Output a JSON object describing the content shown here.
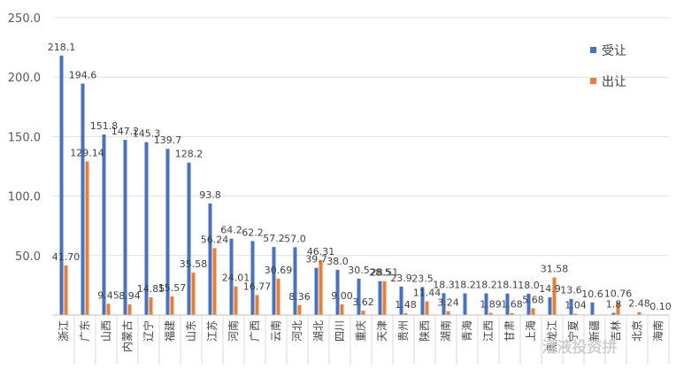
{
  "chart_data": {
    "type": "bar",
    "title": "",
    "xlabel": "",
    "ylabel": "",
    "ylim": [
      0,
      250
    ],
    "yticks": [
      0,
      50,
      100,
      150,
      200,
      250
    ],
    "ytick_labels": [
      "",
      "50.0",
      "100.0",
      "150.0",
      "200.0",
      "250.0"
    ],
    "categories": [
      "浙江",
      "广东",
      "山西",
      "内蒙古",
      "辽宁",
      "福建",
      "山东",
      "江苏",
      "河南",
      "广西",
      "云南",
      "河北",
      "湖北",
      "四川",
      "重庆",
      "天津",
      "贵州",
      "陕西",
      "湖南",
      "青海",
      "江西",
      "甘肃",
      "上海",
      "黑龙江",
      "宁夏",
      "新疆",
      "吉林",
      "北京",
      "海南"
    ],
    "series": [
      {
        "name": "受让",
        "color": "#4472C4",
        "values": [
          218.1,
          194.6,
          151.8,
          147.2,
          145.3,
          139.7,
          128.2,
          93.8,
          64.2,
          62.2,
          57.2,
          57.0,
          39.7,
          38.0,
          30.5,
          28.5,
          23.9,
          23.5,
          18.3,
          18.2,
          18.2,
          18.1,
          18.0,
          14.9,
          13.6,
          10.6,
          1.8,
          0,
          0
        ],
        "labels": [
          "218.1",
          "194.6",
          "151.8",
          "147.2",
          "145.3",
          "139.7",
          "128.2",
          "93.8",
          "64.2",
          "62.2",
          "57.2",
          "57.0",
          "39.7",
          "38.0",
          "30.5",
          "28.5",
          "23.9",
          "23.5",
          "18.3",
          "18.2",
          "18.2",
          "18.1",
          "18.0",
          "14.9",
          "13.6",
          "10.6",
          "1.8",
          "",
          ""
        ]
      },
      {
        "name": "出让",
        "color": "#ED7D31",
        "values": [
          41.7,
          129.14,
          9.45,
          8.94,
          14.85,
          15.57,
          35.58,
          56.24,
          24.01,
          16.77,
          30.69,
          8.36,
          46.31,
          9.0,
          3.62,
          28.51,
          1.48,
          11.44,
          3.24,
          0,
          1.89,
          1.68,
          5.68,
          31.58,
          1.04,
          0,
          10.76,
          2.48,
          0.1
        ],
        "labels": [
          "41.70",
          "129.14",
          "9.45",
          "8.94",
          "14.85",
          "15.57",
          "35.58",
          "56.24",
          "24.01",
          "16.77",
          "30.69",
          "8.36",
          "46.31",
          "9.00",
          "3.62",
          "28.51",
          "1.48",
          "11.44",
          "3.24",
          "",
          "1.89",
          "1.68",
          "5.68",
          "31.58",
          "1.04",
          "",
          "10.76",
          "2.48",
          "0.10"
        ]
      }
    ],
    "legend": "right",
    "grid": true
  },
  "watermark": "活液投资拼"
}
